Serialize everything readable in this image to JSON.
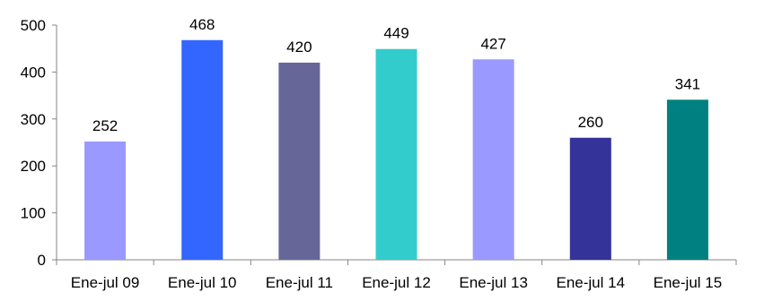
{
  "chart_data": {
    "type": "bar",
    "title": "",
    "xlabel": "",
    "ylabel": "",
    "categories": [
      "Ene-jul 09",
      "Ene-jul 10",
      "Ene-jul 11",
      "Ene-jul 12",
      "Ene-jul 13",
      "Ene-jul 14",
      "Ene-jul 15"
    ],
    "values": [
      252,
      468,
      420,
      449,
      427,
      260,
      341
    ],
    "data_labels": [
      "252",
      "468",
      "420",
      "449",
      "427",
      "260",
      "341"
    ],
    "bar_colors": [
      "#9999FF",
      "#3366FF",
      "#666699",
      "#33CCCC",
      "#9999FF",
      "#333399",
      "#008080"
    ],
    "ylim": [
      0,
      500
    ],
    "yticks": [
      0,
      100,
      200,
      300,
      400,
      500
    ],
    "ytick_labels": [
      "0",
      "100",
      "200",
      "300",
      "400",
      "500"
    ],
    "grid": false,
    "legend": "none",
    "axis_color": "#868686"
  }
}
